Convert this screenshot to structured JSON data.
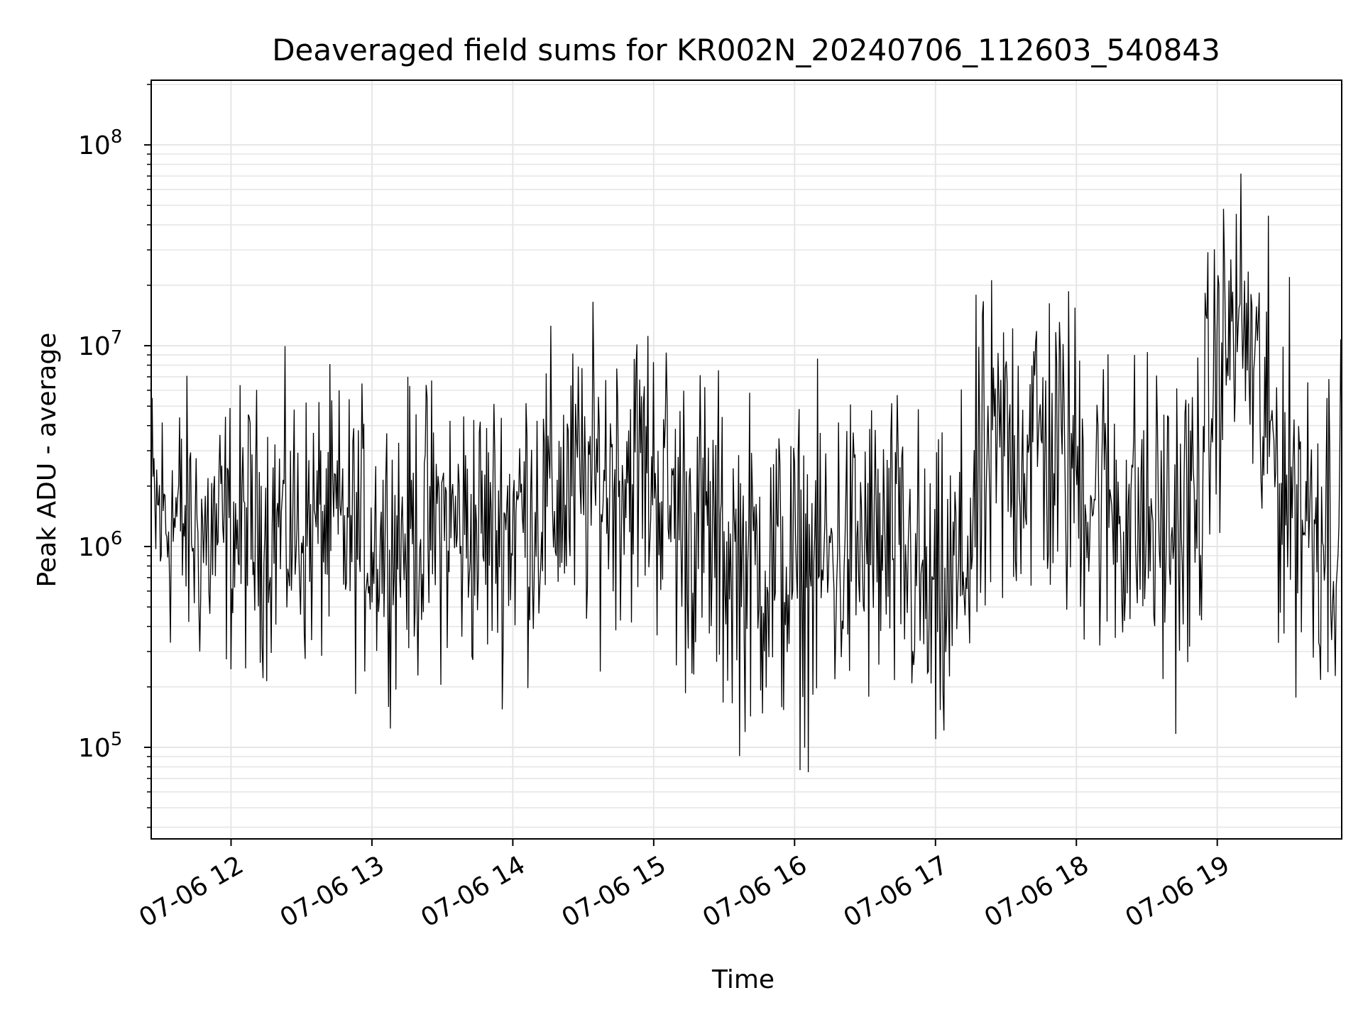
{
  "chart_data": {
    "type": "line",
    "title": "Deaveraged field sums for KR002N_20240706_112603_540843",
    "xlabel": "Time",
    "ylabel": "Peak ADU - average",
    "yscale": "log",
    "ylim": [
      35000,
      210000000
    ],
    "xlim": [
      "2024-07-06 11:26",
      "2024-07-06 19:53"
    ],
    "x_ticks": [
      {
        "label": "07-06 12",
        "value": "2024-07-06 12:00"
      },
      {
        "label": "07-06 13",
        "value": "2024-07-06 13:00"
      },
      {
        "label": "07-06 14",
        "value": "2024-07-06 14:00"
      },
      {
        "label": "07-06 15",
        "value": "2024-07-06 15:00"
      },
      {
        "label": "07-06 16",
        "value": "2024-07-06 16:00"
      },
      {
        "label": "07-06 17",
        "value": "2024-07-06 17:00"
      },
      {
        "label": "07-06 18",
        "value": "2024-07-06 18:00"
      },
      {
        "label": "07-06 19",
        "value": "2024-07-06 19:00"
      }
    ],
    "y_ticks": [
      {
        "base": "10",
        "exp": "5",
        "value": 100000
      },
      {
        "base": "10",
        "exp": "6",
        "value": 1000000
      },
      {
        "base": "10",
        "exp": "7",
        "value": 10000000
      },
      {
        "base": "10",
        "exp": "8",
        "value": 100000000
      }
    ],
    "grid": true,
    "line_color": "#000000",
    "grid_color": "#e6e6e6",
    "series": [
      {
        "x": [
          "2024-07-06 11:26",
          "2024-07-06 11:40",
          "2024-07-06 11:50",
          "2024-07-06 12:00",
          "2024-07-06 12:10",
          "2024-07-06 12:20",
          "2024-07-06 12:30",
          "2024-07-06 12:40",
          "2024-07-06 12:50",
          "2024-07-06 13:00",
          "2024-07-06 13:10",
          "2024-07-06 13:20",
          "2024-07-06 13:30",
          "2024-07-06 13:40",
          "2024-07-06 13:50",
          "2024-07-06 14:00",
          "2024-07-06 14:10",
          "2024-07-06 14:20",
          "2024-07-06 14:30",
          "2024-07-06 14:40",
          "2024-07-06 14:50",
          "2024-07-06 15:00",
          "2024-07-06 15:10",
          "2024-07-06 15:20",
          "2024-07-06 15:30",
          "2024-07-06 15:40",
          "2024-07-06 15:50",
          "2024-07-06 16:00",
          "2024-07-06 16:10",
          "2024-07-06 16:20",
          "2024-07-06 16:30",
          "2024-07-06 16:40",
          "2024-07-06 16:50",
          "2024-07-06 17:00",
          "2024-07-06 17:10",
          "2024-07-06 17:20",
          "2024-07-06 17:30",
          "2024-07-06 17:40",
          "2024-07-06 17:50",
          "2024-07-06 18:00",
          "2024-07-06 18:10",
          "2024-07-06 18:20",
          "2024-07-06 18:30",
          "2024-07-06 18:40",
          "2024-07-06 18:50",
          "2024-07-06 19:00",
          "2024-07-06 19:10",
          "2024-07-06 19:20",
          "2024-07-06 19:30",
          "2024-07-06 19:40",
          "2024-07-06 19:53"
        ],
        "y_center": [
          1500000,
          1300000,
          1100000,
          1200000,
          1200000,
          1300000,
          1200000,
          1300000,
          1200000,
          1100000,
          1100000,
          1200000,
          1300000,
          1200000,
          1200000,
          1400000,
          1600000,
          1800000,
          2000000,
          2200000,
          2500000,
          2400000,
          1400000,
          1200000,
          900000,
          800000,
          800000,
          700000,
          800000,
          900000,
          1000000,
          900000,
          800000,
          400000,
          700000,
          2000000,
          3000000,
          3500000,
          3000000,
          2500000,
          1800000,
          1500000,
          1300000,
          1200000,
          1400000,
          8000000,
          15000000,
          4000000,
          2000000,
          1500000,
          1400000
        ],
        "spread_decades": [
          1.0,
          1.0,
          1.0,
          1.0,
          1.0,
          1.0,
          1.0,
          1.0,
          1.0,
          1.0,
          1.0,
          1.05,
          1.05,
          1.05,
          1.05,
          1.1,
          1.1,
          1.1,
          1.1,
          1.1,
          1.1,
          1.15,
          1.2,
          1.2,
          1.2,
          1.2,
          1.2,
          1.2,
          1.2,
          1.2,
          1.2,
          1.2,
          1.2,
          1.2,
          1.25,
          1.3,
          1.3,
          1.3,
          1.25,
          1.25,
          1.2,
          1.2,
          1.2,
          1.2,
          1.3,
          1.1,
          1.0,
          1.3,
          1.3,
          1.3,
          1.3
        ],
        "samples": 1300
      }
    ]
  }
}
